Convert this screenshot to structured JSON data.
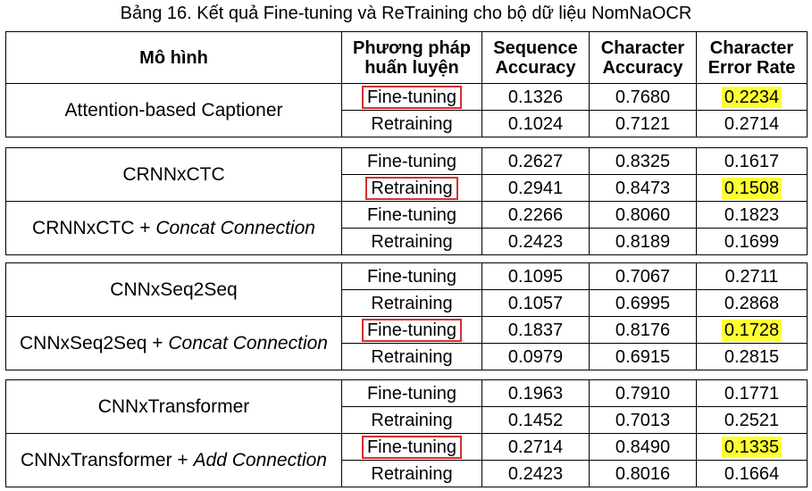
{
  "caption": "Bảng 16. Kết quả Fine-tuning và ReTraining cho bộ dữ liệu NomNaOCR",
  "headers": {
    "model": "Mô hình",
    "method_l1": "Phương pháp",
    "method_l2": "huấn luyện",
    "seq_l1": "Sequence",
    "seq_l2": "Accuracy",
    "char_l1": "Character",
    "char_l2": "Accuracy",
    "cer_l1": "Character",
    "cer_l2": "Error Rate"
  },
  "highlight_color": "#ffff33",
  "box_color": "#d32f2f",
  "groups": [
    {
      "models": [
        {
          "name": "Attention-based Captioner",
          "suffix": "",
          "rows": [
            {
              "method": "Fine-tuning",
              "seq": "0.1326",
              "char": "0.7680",
              "cer": "0.2234"
            },
            {
              "method": "Retraining",
              "seq": "0.1024",
              "char": "0.7121",
              "cer": "0.2714"
            }
          ]
        }
      ]
    },
    {
      "models": [
        {
          "name": "CRNNxCTC",
          "suffix": "",
          "rows": [
            {
              "method": "Fine-tuning",
              "seq": "0.2627",
              "char": "0.8325",
              "cer": "0.1617"
            },
            {
              "method": "Retraining",
              "seq": "0.2941",
              "char": "0.8473",
              "cer": "0.1508"
            }
          ]
        },
        {
          "name": "CRNNxCTC + ",
          "suffix": "Concat Connection",
          "rows": [
            {
              "method": "Fine-tuning",
              "seq": "0.2266",
              "char": "0.8060",
              "cer": "0.1823"
            },
            {
              "method": "Retraining",
              "seq": "0.2423",
              "char": "0.8189",
              "cer": "0.1699"
            }
          ]
        }
      ]
    },
    {
      "models": [
        {
          "name": "CNNxSeq2Seq",
          "suffix": "",
          "rows": [
            {
              "method": "Fine-tuning",
              "seq": "0.1095",
              "char": "0.7067",
              "cer": "0.2711"
            },
            {
              "method": "Retraining",
              "seq": "0.1057",
              "char": "0.6995",
              "cer": "0.2868"
            }
          ]
        },
        {
          "name": "CNNxSeq2Seq + ",
          "suffix": "Concat Connection",
          "rows": [
            {
              "method": "Fine-tuning",
              "seq": "0.1837",
              "char": "0.8176",
              "cer": "0.1728"
            },
            {
              "method": "Retraining",
              "seq": "0.0979",
              "char": "0.6915",
              "cer": "0.2815"
            }
          ]
        }
      ]
    },
    {
      "models": [
        {
          "name": "CNNxTransformer",
          "suffix": "",
          "rows": [
            {
              "method": "Fine-tuning",
              "seq": "0.1963",
              "char": "0.7910",
              "cer": "0.1771"
            },
            {
              "method": "Retraining",
              "seq": "0.1452",
              "char": "0.7013",
              "cer": "0.2521"
            }
          ]
        },
        {
          "name": "CNNxTransformer + ",
          "suffix": "Add Connection",
          "rows": [
            {
              "method": "Fine-tuning",
              "seq": "0.2714",
              "char": "0.8490",
              "cer": "0.1335"
            },
            {
              "method": "Retraining",
              "seq": "0.2423",
              "char": "0.8016",
              "cer": "0.1664"
            }
          ]
        }
      ]
    }
  ]
}
